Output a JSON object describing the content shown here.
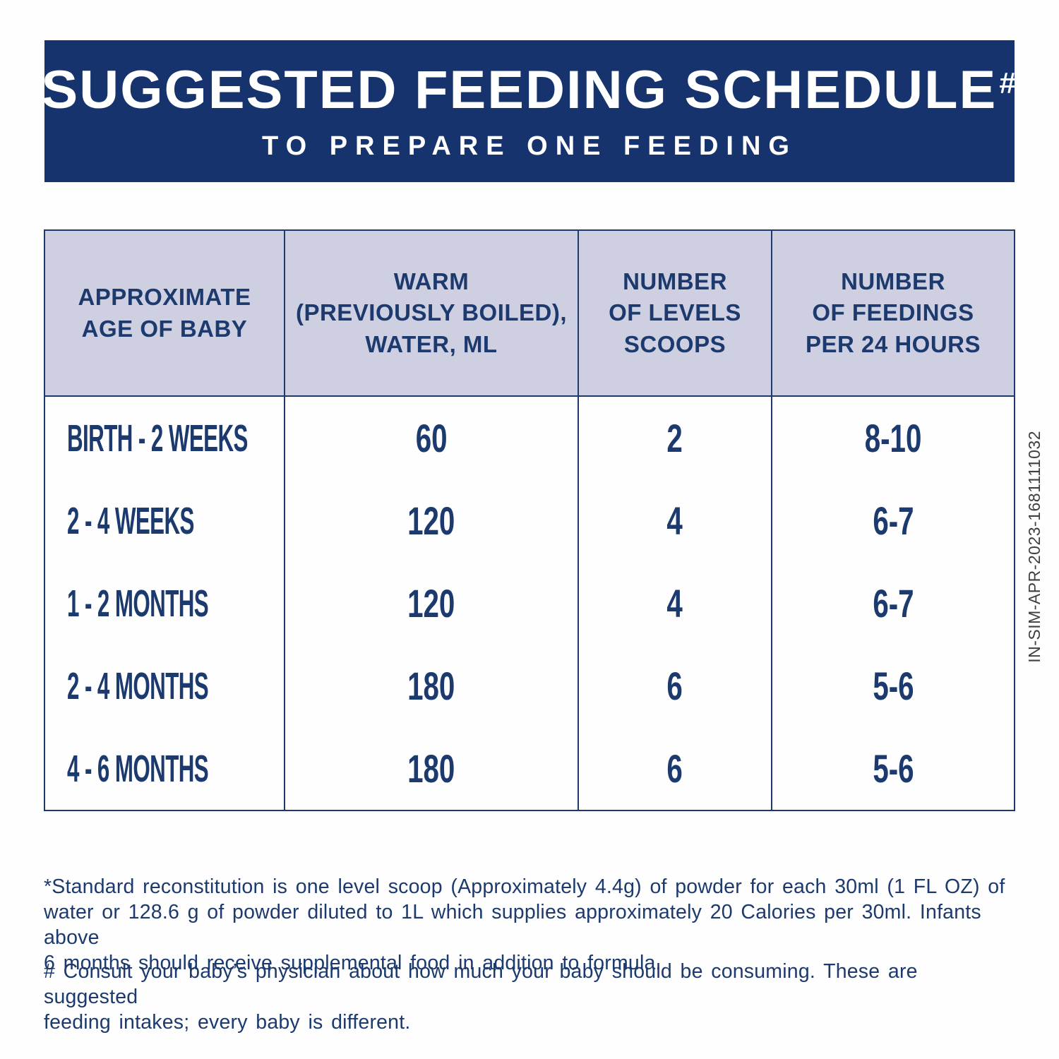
{
  "banner": {
    "title": "SUGGESTED FEEDING SCHEDULE",
    "title_marker": "#",
    "subtitle": "TO PREPARE ONE FEEDING"
  },
  "table": {
    "headers": [
      {
        "text": "APPROXIMATE\nAGE OF BABY"
      },
      {
        "text": "WARM\n(PREVIOUSLY BOILED),\nWATER, ML"
      },
      {
        "text": "NUMBER\nOF LEVELS\nSCOOPS"
      },
      {
        "text": "NUMBER\nOF FEEDINGS\nPER 24 HOURS"
      }
    ],
    "rows": [
      {
        "age": "BIRTH - 2 WEEKS",
        "water_ml": "60",
        "scoops": "2",
        "feedings_per_24h": "8-10"
      },
      {
        "age": "2 - 4 WEEKS",
        "water_ml": "120",
        "scoops": "4",
        "feedings_per_24h": "6-7"
      },
      {
        "age": "1 - 2 MONTHS",
        "water_ml": "120",
        "scoops": "4",
        "feedings_per_24h": "6-7"
      },
      {
        "age": "2 - 4 MONTHS",
        "water_ml": "180",
        "scoops": "6",
        "feedings_per_24h": "5-6"
      },
      {
        "age": "4 - 6 MONTHS",
        "water_ml": "180",
        "scoops": "6",
        "feedings_per_24h": "5-6"
      }
    ]
  },
  "footnotes": {
    "standard_reconstitution": "*Standard reconstitution is one level scoop (Approximately 4.4g) of powder for each 30ml (1 FL OZ) of\nwater or 128.6 g of powder diluted to 1L which supplies approximately 20 Calories per 30ml. Infants above\n6 months should receive supplemental food in addition to formula.",
    "consult_physician": "# Consult your baby’s physician about how much your baby should be consuming. These are suggested\nfeeding intakes; every baby is different."
  },
  "side_code": "IN-SIM-APR-2023-1681111032",
  "colors": {
    "banner_bg": "#16336d",
    "text_navy": "#1c3a6e",
    "header_cell_bg": "#cfcfe2",
    "border_navy": "#1c3a6e",
    "side_code_gray": "#3f3f3f",
    "page_bg": "#fefefe"
  }
}
